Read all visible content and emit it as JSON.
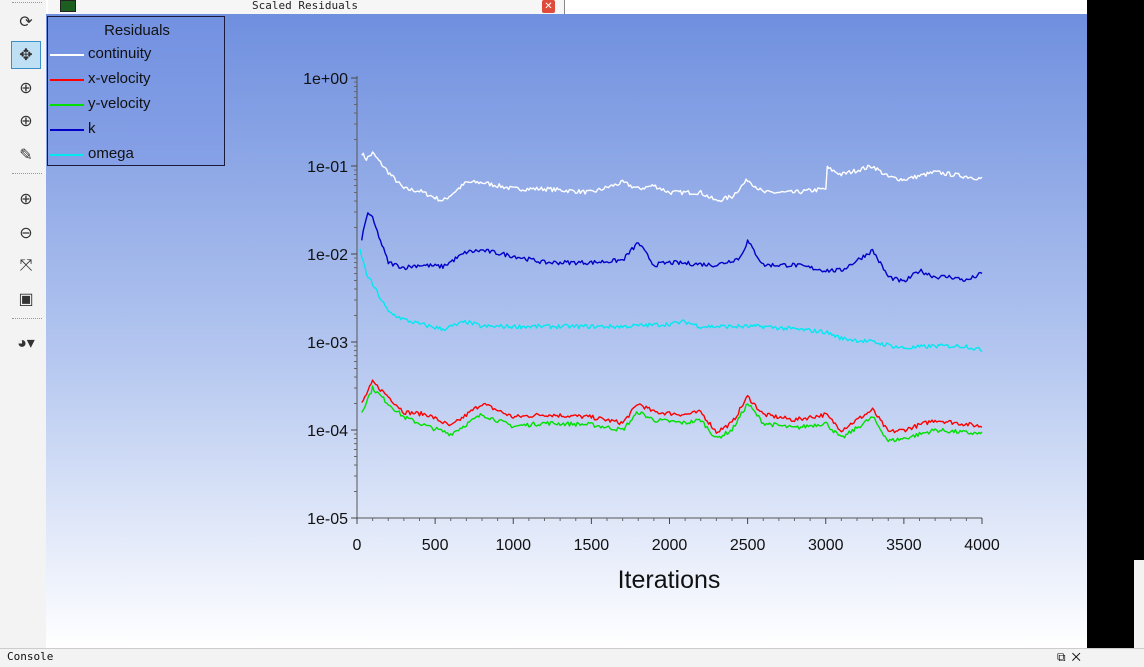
{
  "window": {
    "tab_title": "Scaled Residuals",
    "close_label": "✕"
  },
  "toolbar": {
    "tools": [
      {
        "name": "rotate-icon",
        "glyph": "⟳"
      },
      {
        "name": "pan-icon",
        "glyph": "✥",
        "active": true
      },
      {
        "name": "zoom-in-out-icon",
        "glyph": "⊕"
      },
      {
        "name": "zoom-to-area-icon",
        "glyph": "⊕"
      },
      {
        "name": "probe-icon",
        "glyph": "✎"
      },
      {
        "name": "fit-to-window-icon",
        "glyph": "⊕"
      },
      {
        "name": "zoom-out-icon",
        "glyph": "⊖"
      },
      {
        "name": "isometric-view-icon",
        "glyph": "⤧"
      },
      {
        "name": "screenshot-camera-icon",
        "glyph": "▣"
      },
      {
        "name": "view-options-dropdown-icon",
        "glyph": "◕▾"
      }
    ]
  },
  "legend": {
    "title": "Residuals",
    "items": [
      {
        "label": "continuity",
        "color": "#ffffff"
      },
      {
        "label": "x-velocity",
        "color": "#ff0000"
      },
      {
        "label": "y-velocity",
        "color": "#00e000"
      },
      {
        "label": "k",
        "color": "#0000c8"
      },
      {
        "label": "omega",
        "color": "#00e8f0"
      }
    ]
  },
  "console": {
    "label": "Console",
    "buttons": "⧉✕"
  },
  "chart_data": {
    "type": "line",
    "title": "Residuals",
    "xlabel": "Iterations",
    "ylabel": "",
    "xlim": [
      0,
      4000
    ],
    "ylim": [
      1e-05,
      1
    ],
    "yscale": "log",
    "xticks": [
      "0",
      "500",
      "1000",
      "1500",
      "2000",
      "2500",
      "3000",
      "3500",
      "4000"
    ],
    "yticks": [
      "1e-05",
      "1e-04",
      "1e-03",
      "1e-02",
      "1e-01",
      "1e+00"
    ],
    "grid": false,
    "legend_position": "top-left",
    "series": [
      {
        "name": "continuity",
        "color": "#ffffff",
        "x": [
          30,
          60,
          100,
          200,
          300,
          400,
          550,
          700,
          800,
          1000,
          1200,
          1500,
          1700,
          1800,
          1900,
          2000,
          2200,
          2300,
          2400,
          2500,
          2600,
          2800,
          3000,
          3010,
          3100,
          3300,
          3400,
          3500,
          3700,
          4000
        ],
        "y": [
          0.14,
          0.12,
          0.14,
          0.085,
          0.055,
          0.052,
          0.04,
          0.065,
          0.065,
          0.055,
          0.055,
          0.05,
          0.065,
          0.055,
          0.06,
          0.05,
          0.05,
          0.04,
          0.045,
          0.07,
          0.05,
          0.05,
          0.055,
          0.095,
          0.08,
          0.1,
          0.075,
          0.07,
          0.085,
          0.072
        ]
      },
      {
        "name": "x-velocity",
        "color": "#ff0000",
        "x": [
          30,
          100,
          200,
          300,
          450,
          600,
          800,
          1000,
          1200,
          1500,
          1700,
          1800,
          1900,
          2100,
          2200,
          2300,
          2400,
          2500,
          2600,
          2800,
          3000,
          3100,
          3300,
          3400,
          3500,
          3700,
          4000
        ],
        "y": [
          0.0002,
          0.00035,
          0.00024,
          0.00016,
          0.00015,
          0.00011,
          0.0002,
          0.00014,
          0.00015,
          0.00014,
          0.00012,
          0.0002,
          0.00016,
          0.00015,
          0.00016,
          9.5e-05,
          0.00012,
          0.00024,
          0.00015,
          0.00013,
          0.00015,
          0.0001,
          0.00017,
          9.5e-05,
          0.0001,
          0.00013,
          0.00011
        ]
      },
      {
        "name": "y-velocity",
        "color": "#00e000",
        "x": [
          30,
          100,
          200,
          300,
          450,
          600,
          800,
          1000,
          1200,
          1500,
          1700,
          1800,
          1900,
          2100,
          2200,
          2300,
          2400,
          2500,
          2600,
          2800,
          3000,
          3100,
          3300,
          3400,
          3500,
          3700,
          4000
        ],
        "y": [
          0.00016,
          0.0003,
          0.0002,
          0.00014,
          0.00011,
          9e-05,
          0.00015,
          0.00011,
          0.00012,
          0.000115,
          0.0001,
          0.00016,
          0.00013,
          0.00012,
          0.00013,
          8e-05,
          0.0001,
          0.0002,
          0.00012,
          0.000105,
          0.00012,
          8e-05,
          0.00014,
          7.5e-05,
          8e-05,
          0.0001,
          9e-05
        ]
      },
      {
        "name": "k",
        "color": "#0000c8",
        "x": [
          30,
          70,
          100,
          200,
          300,
          400,
          550,
          700,
          800,
          1000,
          1200,
          1500,
          1700,
          1800,
          1900,
          2000,
          2300,
          2450,
          2500,
          2600,
          2800,
          3000,
          3100,
          3300,
          3400,
          3500,
          3600,
          3700,
          3800,
          3900,
          4000
        ],
        "y": [
          0.015,
          0.03,
          0.025,
          0.008,
          0.007,
          0.0075,
          0.0072,
          0.0105,
          0.011,
          0.0095,
          0.008,
          0.008,
          0.0085,
          0.0135,
          0.0075,
          0.008,
          0.0075,
          0.009,
          0.014,
          0.0075,
          0.0075,
          0.0065,
          0.0065,
          0.011,
          0.0055,
          0.0048,
          0.0065,
          0.0055,
          0.0055,
          0.005,
          0.006
        ]
      },
      {
        "name": "omega",
        "color": "#00e8f0",
        "x": [
          20,
          60,
          100,
          200,
          300,
          400,
          550,
          700,
          800,
          1000,
          1200,
          1500,
          1700,
          2000,
          2100,
          2200,
          2400,
          2600,
          2800,
          3000,
          3100,
          3300,
          3500,
          3700,
          3900,
          4000
        ],
        "y": [
          0.011,
          0.006,
          0.0045,
          0.0022,
          0.0018,
          0.0016,
          0.0014,
          0.0017,
          0.0015,
          0.0015,
          0.0015,
          0.0015,
          0.0015,
          0.0016,
          0.0017,
          0.0015,
          0.0015,
          0.0015,
          0.0014,
          0.0013,
          0.0011,
          0.001,
          0.00085,
          0.0009,
          0.0009,
          0.0008
        ]
      }
    ]
  }
}
